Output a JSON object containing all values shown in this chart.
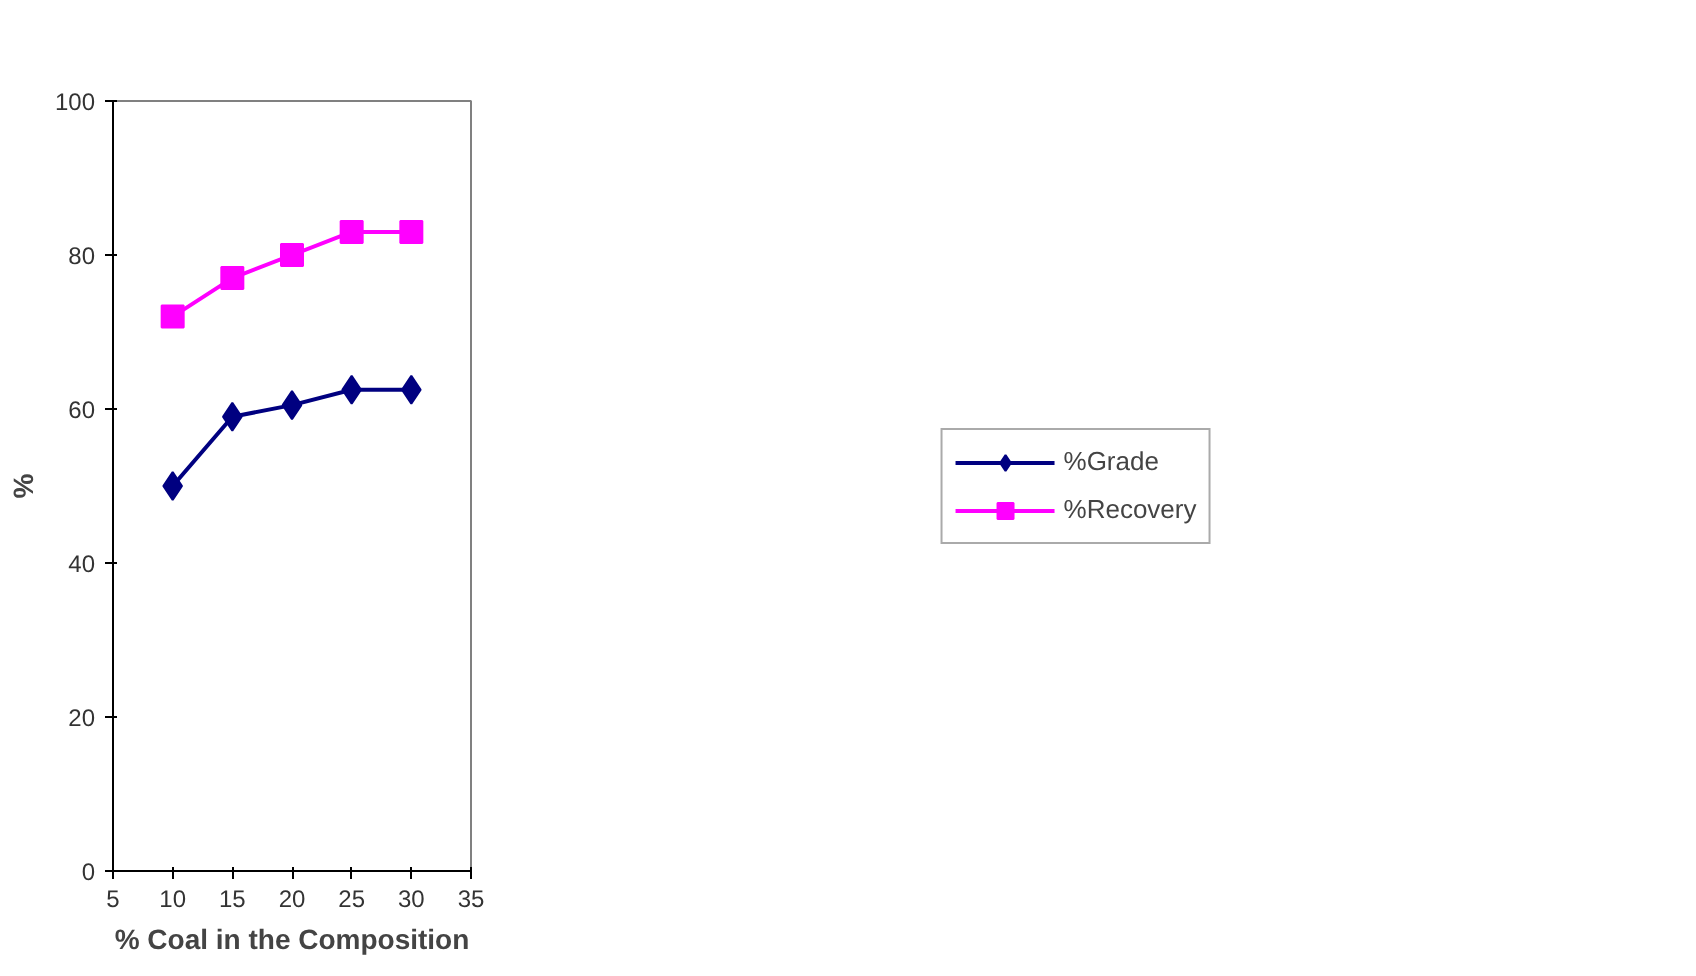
{
  "chart_data": {
    "type": "line",
    "xlabel": "% Coal in the Composition",
    "ylabel": "%",
    "x": [
      10,
      15,
      20,
      25,
      30
    ],
    "series": [
      {
        "name": "%Grade",
        "color": "#000080",
        "marker": "diamond",
        "values": [
          50,
          59,
          60.5,
          62.5,
          62.5
        ]
      },
      {
        "name": "%Recovery",
        "color": "#ff00ff",
        "marker": "square",
        "values": [
          72,
          77,
          80,
          83,
          83
        ]
      }
    ],
    "xlim": [
      5,
      35
    ],
    "xticks": [
      5,
      10,
      15,
      20,
      25,
      30,
      35
    ],
    "ylim": [
      0,
      100
    ],
    "yticks": [
      0,
      20,
      40,
      60,
      80,
      100
    ],
    "grid": false,
    "legend": "right",
    "line_style": "solid"
  }
}
